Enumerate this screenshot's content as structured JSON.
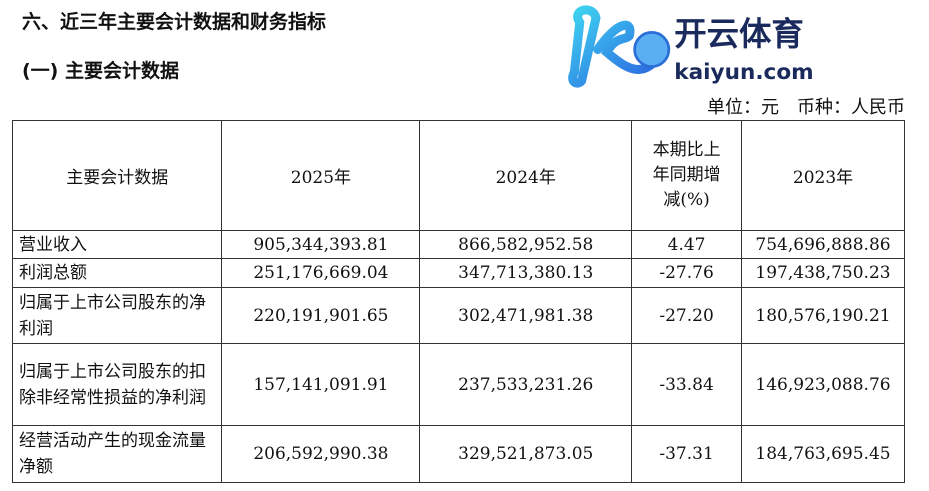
{
  "section_title": "六、近三年主要会计数据和财务指标",
  "subsection_title": "(一) 主要会计数据",
  "unit_note": "单位：元　币种：人民币",
  "table": {
    "headers": [
      "主要会计数据",
      "2025年",
      "2024年",
      "本期比上年同期增减(%)",
      "2023年"
    ],
    "rows": [
      {
        "label": "营业收入",
        "v2025": "905,344,393.81",
        "v2024": "866,582,952.58",
        "change": "4.47",
        "v2023": "754,696,888.86"
      },
      {
        "label": "利润总额",
        "v2025": "251,176,669.04",
        "v2024": "347,713,380.13",
        "change": "-27.76",
        "v2023": "197,438,750.23"
      },
      {
        "label": "归属于上市公司股东的净利润",
        "v2025": "220,191,901.65",
        "v2024": "302,471,981.38",
        "change": "-27.20",
        "v2023": "180,576,190.21"
      },
      {
        "label": "归属于上市公司股东的扣除非经常性损益的净利润",
        "v2025": "157,141,091.91",
        "v2024": "237,533,231.26",
        "change": "-33.84",
        "v2023": "146,923,088.76"
      },
      {
        "label": "经营活动产生的现金流量净额",
        "v2025": "206,592,990.38",
        "v2024": "329,521,873.05",
        "change": "-37.31",
        "v2023": "184,763,695.45"
      }
    ]
  },
  "watermark": {
    "brand": "开云体育",
    "domain": "kaiyun.com"
  }
}
